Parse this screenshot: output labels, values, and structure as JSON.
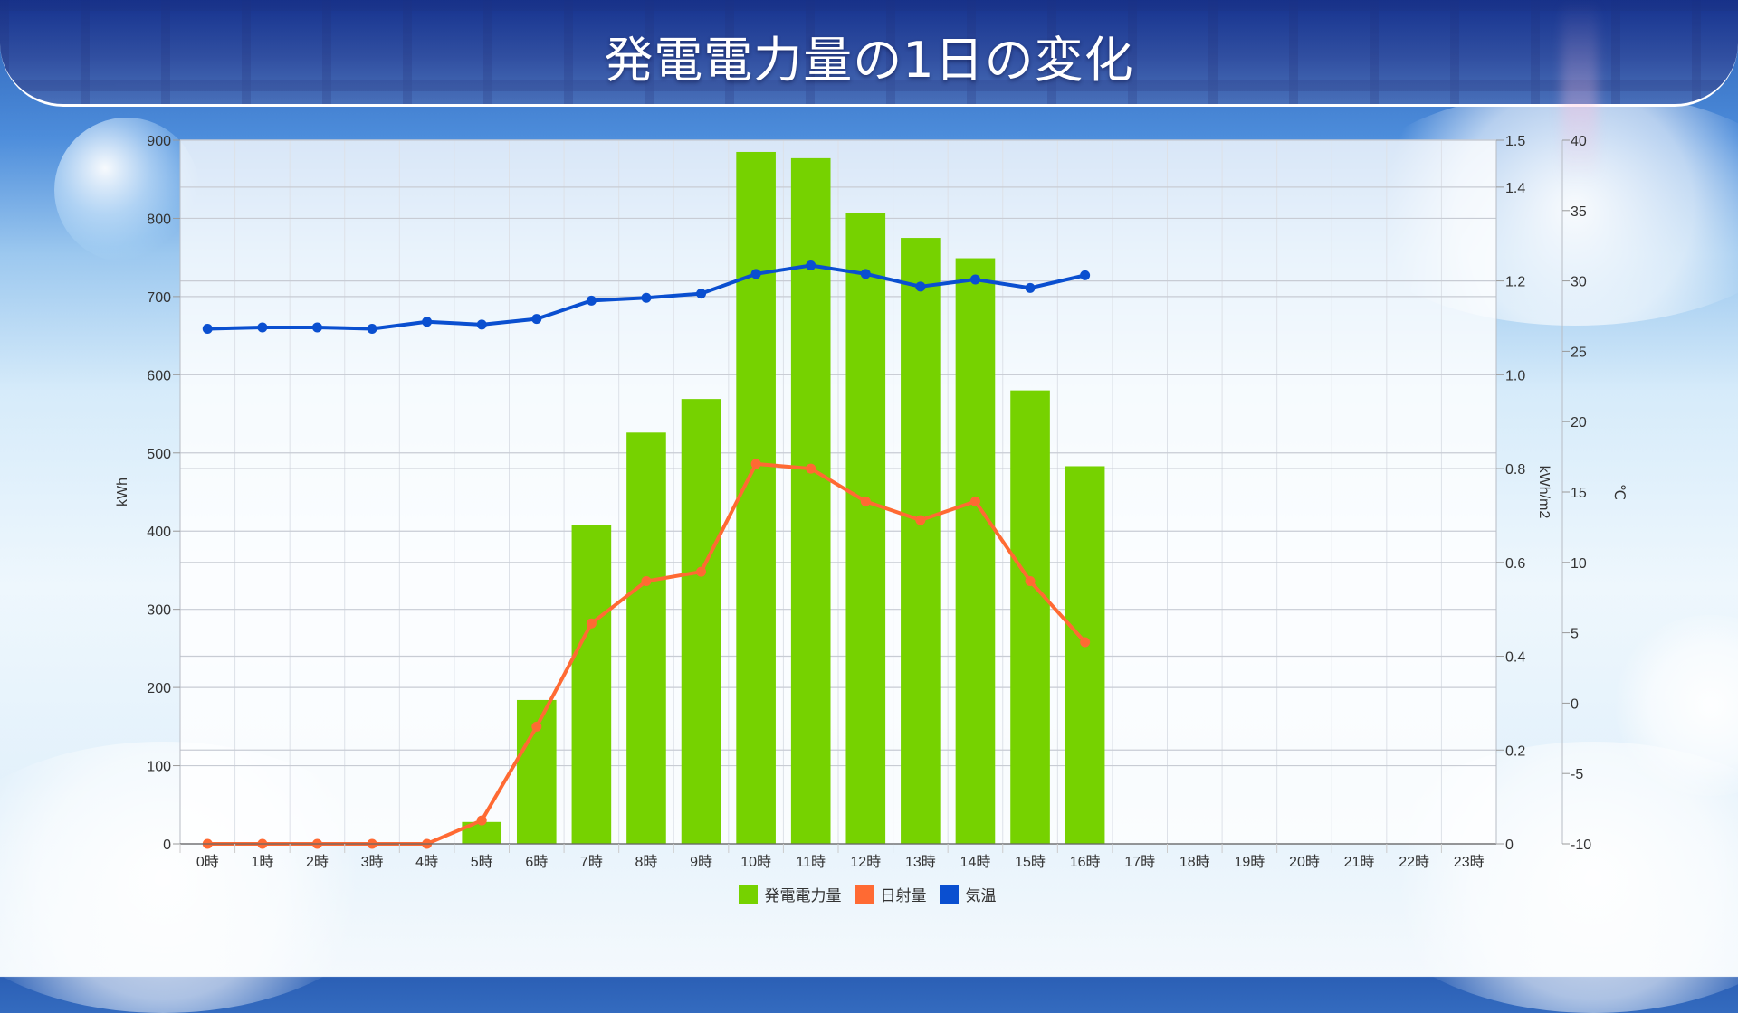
{
  "header": {
    "title": "発電電力量の1日の変化"
  },
  "colors": {
    "power_bar": "#76d200",
    "solar_line": "#ff6a33",
    "temp_line": "#0a4fd0",
    "grid": "#c8ccd4",
    "axis_text": "#333333"
  },
  "legend": [
    {
      "label": "発電電力量",
      "color": "#76d200"
    },
    {
      "label": "日射量",
      "color": "#ff6a33"
    },
    {
      "label": "気温",
      "color": "#0a4fd0"
    }
  ],
  "chart_data": {
    "type": "bar",
    "title": "発電電力量の1日の変化",
    "categories": [
      "0時",
      "1時",
      "2時",
      "3時",
      "4時",
      "5時",
      "6時",
      "7時",
      "8時",
      "9時",
      "10時",
      "11時",
      "12時",
      "13時",
      "14時",
      "15時",
      "16時",
      "17時",
      "18時",
      "19時",
      "20時",
      "21時",
      "22時",
      "23時"
    ],
    "series": [
      {
        "name": "発電電力量",
        "type": "bar",
        "axis": "left",
        "unit": "kWh",
        "values": [
          0,
          0,
          0,
          0,
          0,
          28,
          184,
          408,
          526,
          569,
          885,
          877,
          807,
          775,
          749,
          580,
          483,
          null,
          null,
          null,
          null,
          null,
          null,
          null
        ]
      },
      {
        "name": "日射量",
        "type": "line",
        "axis": "right1",
        "unit": "kWh/m2",
        "values": [
          0,
          0,
          0,
          0,
          0,
          0.05,
          0.25,
          0.47,
          0.56,
          0.58,
          0.81,
          0.8,
          0.73,
          0.69,
          0.73,
          0.56,
          0.43,
          null,
          null,
          null,
          null,
          null,
          null,
          null
        ]
      },
      {
        "name": "気温",
        "type": "line",
        "axis": "right2",
        "unit": "℃",
        "values": [
          26.6,
          26.7,
          26.7,
          26.6,
          27.1,
          26.9,
          27.3,
          28.6,
          28.8,
          29.1,
          30.5,
          31.1,
          30.5,
          29.6,
          30.1,
          29.5,
          30.4,
          null,
          null,
          null,
          null,
          null,
          null,
          null
        ]
      }
    ],
    "axes": {
      "left": {
        "label": "kWh",
        "min": 0,
        "max": 900,
        "ticks": [
          0,
          100,
          200,
          300,
          400,
          500,
          600,
          700,
          800,
          900
        ]
      },
      "right1": {
        "label": "kWh/m2",
        "min": 0,
        "max": 1.5,
        "ticks": [
          "0",
          "0.2",
          "0.4",
          "0.6",
          "0.8",
          "1.0",
          "1.2",
          "1.4",
          "1.5"
        ]
      },
      "right2": {
        "label": "℃",
        "min": -10,
        "max": 40,
        "ticks": [
          -10,
          -5,
          0,
          5,
          10,
          15,
          20,
          25,
          30,
          35,
          40
        ]
      }
    },
    "xlabel": "",
    "grid": true,
    "legend_position": "bottom"
  }
}
